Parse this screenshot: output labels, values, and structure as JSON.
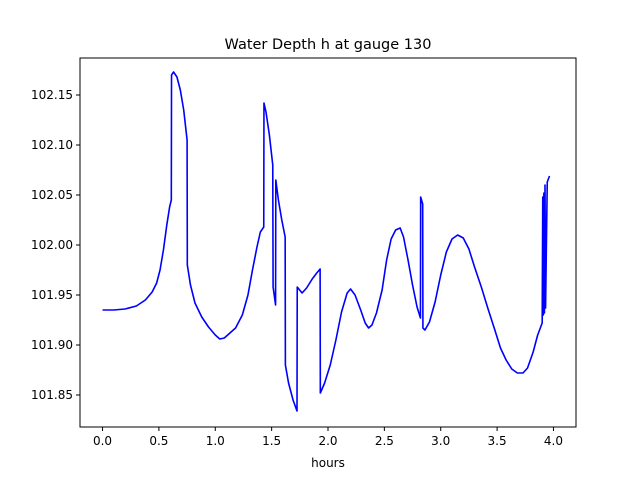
{
  "chart_data": {
    "type": "line",
    "title": "Water Depth h at gauge 130",
    "xlabel": "hours",
    "ylabel": "",
    "xlim": [
      -0.2,
      4.2
    ],
    "ylim": [
      101.818,
      102.187
    ],
    "xticks": [
      0.0,
      0.5,
      1.0,
      1.5,
      2.0,
      2.5,
      3.0,
      3.5,
      4.0
    ],
    "xtick_labels": [
      "0.0",
      "0.5",
      "1.0",
      "1.5",
      "2.0",
      "2.5",
      "3.0",
      "3.5",
      "4.0"
    ],
    "yticks": [
      101.85,
      101.9,
      101.95,
      102.0,
      102.05,
      102.1,
      102.15
    ],
    "ytick_labels": [
      "101.85",
      "101.90",
      "101.95",
      "102.00",
      "102.05",
      "102.10",
      "102.15"
    ],
    "grid": false,
    "legend": "none",
    "series": [
      {
        "color": "#0000ff",
        "points": [
          [
            0.0,
            101.935
          ],
          [
            0.1,
            101.935
          ],
          [
            0.2,
            101.936
          ],
          [
            0.3,
            101.939
          ],
          [
            0.38,
            101.945
          ],
          [
            0.44,
            101.953
          ],
          [
            0.48,
            101.962
          ],
          [
            0.51,
            101.975
          ],
          [
            0.54,
            101.995
          ],
          [
            0.57,
            102.02
          ],
          [
            0.595,
            102.038
          ],
          [
            0.61,
            102.045
          ],
          [
            0.612,
            102.17
          ],
          [
            0.63,
            102.173
          ],
          [
            0.66,
            102.168
          ],
          [
            0.69,
            102.155
          ],
          [
            0.72,
            102.135
          ],
          [
            0.75,
            102.105
          ],
          [
            0.752,
            101.98
          ],
          [
            0.78,
            101.96
          ],
          [
            0.82,
            101.942
          ],
          [
            0.88,
            101.928
          ],
          [
            0.94,
            101.918
          ],
          [
            1.0,
            101.91
          ],
          [
            1.04,
            101.906
          ],
          [
            1.08,
            101.907
          ],
          [
            1.12,
            101.911
          ],
          [
            1.18,
            101.917
          ],
          [
            1.24,
            101.93
          ],
          [
            1.29,
            101.95
          ],
          [
            1.33,
            101.975
          ],
          [
            1.37,
            101.998
          ],
          [
            1.4,
            102.013
          ],
          [
            1.43,
            102.018
          ],
          [
            1.432,
            102.142
          ],
          [
            1.45,
            102.133
          ],
          [
            1.48,
            102.11
          ],
          [
            1.51,
            102.08
          ],
          [
            1.513,
            101.958
          ],
          [
            1.535,
            101.94
          ],
          [
            1.537,
            102.065
          ],
          [
            1.56,
            102.045
          ],
          [
            1.59,
            102.025
          ],
          [
            1.62,
            102.008
          ],
          [
            1.622,
            101.88
          ],
          [
            1.65,
            101.862
          ],
          [
            1.69,
            101.845
          ],
          [
            1.725,
            101.834
          ],
          [
            1.727,
            101.958
          ],
          [
            1.77,
            101.952
          ],
          [
            1.81,
            101.957
          ],
          [
            1.86,
            101.966
          ],
          [
            1.9,
            101.972
          ],
          [
            1.93,
            101.976
          ],
          [
            1.932,
            101.852
          ],
          [
            1.97,
            101.862
          ],
          [
            2.02,
            101.88
          ],
          [
            2.07,
            101.905
          ],
          [
            2.12,
            101.933
          ],
          [
            2.17,
            101.952
          ],
          [
            2.2,
            101.956
          ],
          [
            2.24,
            101.95
          ],
          [
            2.29,
            101.935
          ],
          [
            2.33,
            101.922
          ],
          [
            2.36,
            101.917
          ],
          [
            2.39,
            101.92
          ],
          [
            2.43,
            101.932
          ],
          [
            2.48,
            101.955
          ],
          [
            2.52,
            101.985
          ],
          [
            2.56,
            102.006
          ],
          [
            2.6,
            102.015
          ],
          [
            2.64,
            102.017
          ],
          [
            2.67,
            102.008
          ],
          [
            2.71,
            101.985
          ],
          [
            2.75,
            101.96
          ],
          [
            2.79,
            101.938
          ],
          [
            2.82,
            101.927
          ],
          [
            2.822,
            102.048
          ],
          [
            2.84,
            102.041
          ],
          [
            2.842,
            101.917
          ],
          [
            2.86,
            101.915
          ],
          [
            2.9,
            101.923
          ],
          [
            2.95,
            101.943
          ],
          [
            3.0,
            101.97
          ],
          [
            3.05,
            101.993
          ],
          [
            3.1,
            102.006
          ],
          [
            3.15,
            102.01
          ],
          [
            3.2,
            102.007
          ],
          [
            3.25,
            101.996
          ],
          [
            3.3,
            101.978
          ],
          [
            3.36,
            101.958
          ],
          [
            3.42,
            101.936
          ],
          [
            3.48,
            101.915
          ],
          [
            3.53,
            101.897
          ],
          [
            3.58,
            101.885
          ],
          [
            3.63,
            101.876
          ],
          [
            3.68,
            101.872
          ],
          [
            3.73,
            101.872
          ],
          [
            3.77,
            101.877
          ],
          [
            3.82,
            101.893
          ],
          [
            3.86,
            101.91
          ],
          [
            3.9,
            101.922
          ],
          [
            3.905,
            102.048
          ],
          [
            3.91,
            101.93
          ],
          [
            3.915,
            102.052
          ],
          [
            3.92,
            101.932
          ],
          [
            3.925,
            102.06
          ],
          [
            3.93,
            101.937
          ],
          [
            3.945,
            102.063
          ],
          [
            3.965,
            102.069
          ]
        ]
      }
    ]
  }
}
